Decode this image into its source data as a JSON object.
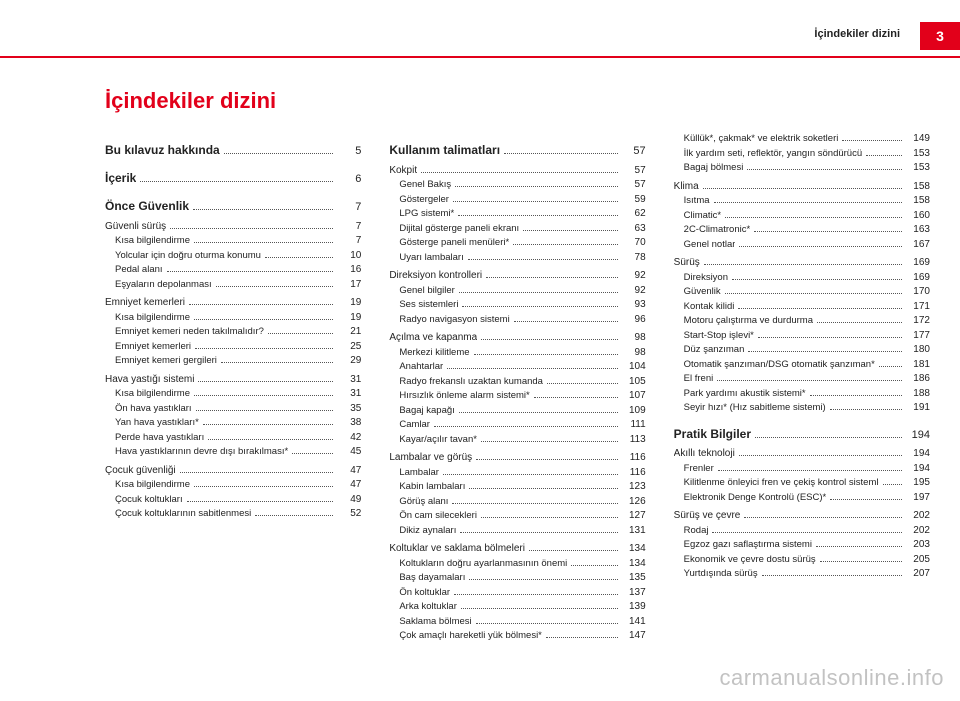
{
  "header": {
    "running_title": "İçindekiler dizini",
    "page_number": "3"
  },
  "title": "İçindekiler dizini",
  "watermark": "carmanualsonline.info",
  "colors": {
    "accent": "#e2001a",
    "text": "#222222",
    "watermark": "rgba(120,120,120,0.45)"
  },
  "columns": [
    [
      {
        "level": 1,
        "label": "Bu kılavuz hakkında",
        "page": "5"
      },
      {
        "level": 1,
        "label": "İçerik",
        "page": "6"
      },
      {
        "level": 1,
        "label": "Önce Güvenlik",
        "page": "7"
      },
      {
        "level": 2,
        "label": "Güvenli sürüş",
        "page": "7"
      },
      {
        "level": 3,
        "label": "Kısa bilgilendirme",
        "page": "7"
      },
      {
        "level": 3,
        "label": "Yolcular için doğru oturma konumu",
        "page": "10"
      },
      {
        "level": 3,
        "label": "Pedal alanı",
        "page": "16"
      },
      {
        "level": 3,
        "label": "Eşyaların depolanması",
        "page": "17"
      },
      {
        "level": 2,
        "label": "Emniyet kemerleri",
        "page": "19"
      },
      {
        "level": 3,
        "label": "Kısa bilgilendirme",
        "page": "19"
      },
      {
        "level": 3,
        "label": "Emniyet kemeri neden takılmalıdır?",
        "page": "21"
      },
      {
        "level": 3,
        "label": "Emniyet kemerleri",
        "page": "25"
      },
      {
        "level": 3,
        "label": "Emniyet kemeri gergileri",
        "page": "29"
      },
      {
        "level": 2,
        "label": "Hava yastığı sistemi",
        "page": "31"
      },
      {
        "level": 3,
        "label": "Kısa bilgilendirme",
        "page": "31"
      },
      {
        "level": 3,
        "label": "Ön hava yastıkları",
        "page": "35"
      },
      {
        "level": 3,
        "label": "Yan hava yastıkları*",
        "page": "38"
      },
      {
        "level": 3,
        "label": "Perde hava yastıkları",
        "page": "42"
      },
      {
        "level": 3,
        "label": "Hava yastıklarının devre dışı bırakılması*",
        "page": "45"
      },
      {
        "level": 2,
        "label": "Çocuk güvenliği",
        "page": "47"
      },
      {
        "level": 3,
        "label": "Kısa bilgilendirme",
        "page": "47"
      },
      {
        "level": 3,
        "label": "Çocuk koltukları",
        "page": "49"
      },
      {
        "level": 3,
        "label": "Çocuk koltuklarının sabitlenmesi",
        "page": "52"
      }
    ],
    [
      {
        "level": 1,
        "label": "Kullanım talimatları",
        "page": "57"
      },
      {
        "level": 2,
        "label": "Kokpit",
        "page": "57"
      },
      {
        "level": 3,
        "label": "Genel Bakış",
        "page": "57"
      },
      {
        "level": 3,
        "label": "Göstergeler",
        "page": "59"
      },
      {
        "level": 3,
        "label": "LPG sistemi*",
        "page": "62"
      },
      {
        "level": 3,
        "label": "Dijital gösterge paneli ekranı",
        "page": "63"
      },
      {
        "level": 3,
        "label": "Gösterge paneli menüleri*",
        "page": "70"
      },
      {
        "level": 3,
        "label": "Uyarı lambaları",
        "page": "78"
      },
      {
        "level": 2,
        "label": "Direksiyon kontrolleri",
        "page": "92"
      },
      {
        "level": 3,
        "label": "Genel bilgiler",
        "page": "92"
      },
      {
        "level": 3,
        "label": "Ses sistemleri",
        "page": "93"
      },
      {
        "level": 3,
        "label": "Radyo navigasyon sistemi",
        "page": "96"
      },
      {
        "level": 2,
        "label": "Açılma ve kapanma",
        "page": "98"
      },
      {
        "level": 3,
        "label": "Merkezi kilitleme",
        "page": "98"
      },
      {
        "level": 3,
        "label": "Anahtarlar",
        "page": "104"
      },
      {
        "level": 3,
        "label": "Radyo frekanslı uzaktan kumanda",
        "page": "105"
      },
      {
        "level": 3,
        "label": "Hırsızlık önleme alarm sistemi*",
        "page": "107"
      },
      {
        "level": 3,
        "label": "Bagaj kapağı",
        "page": "109"
      },
      {
        "level": 3,
        "label": "Camlar",
        "page": "111"
      },
      {
        "level": 3,
        "label": "Kayar/açılır tavan*",
        "page": "113"
      },
      {
        "level": 2,
        "label": "Lambalar ve görüş",
        "page": "116"
      },
      {
        "level": 3,
        "label": "Lambalar",
        "page": "116"
      },
      {
        "level": 3,
        "label": "Kabin lambaları",
        "page": "123"
      },
      {
        "level": 3,
        "label": "Görüş alanı",
        "page": "126"
      },
      {
        "level": 3,
        "label": "Ön cam silecekleri",
        "page": "127"
      },
      {
        "level": 3,
        "label": "Dikiz aynaları",
        "page": "131"
      },
      {
        "level": 2,
        "label": "Koltuklar ve saklama bölmeleri",
        "page": "134"
      },
      {
        "level": 3,
        "label": "Koltukların doğru ayarlanmasının önemi",
        "page": "134"
      },
      {
        "level": 3,
        "label": "Baş dayamaları",
        "page": "135"
      },
      {
        "level": 3,
        "label": "Ön koltuklar",
        "page": "137"
      },
      {
        "level": 3,
        "label": "Arka koltuklar",
        "page": "139"
      },
      {
        "level": 3,
        "label": "Saklama bölmesi",
        "page": "141"
      },
      {
        "level": 3,
        "label": "Çok amaçlı hareketli yük bölmesi*",
        "page": "147"
      }
    ],
    [
      {
        "level": 3,
        "label": "Küllük*, çakmak* ve elektrik soketleri",
        "page": "149"
      },
      {
        "level": 3,
        "label": "İlk yardım seti, reflektör, yangın söndürücü",
        "page": "153"
      },
      {
        "level": 3,
        "label": "Bagaj bölmesi",
        "page": "153"
      },
      {
        "level": 2,
        "label": "Klima",
        "page": "158"
      },
      {
        "level": 3,
        "label": "Isıtma",
        "page": "158"
      },
      {
        "level": 3,
        "label": "Climatic*",
        "page": "160"
      },
      {
        "level": 3,
        "label": "2C-Climatronic*",
        "page": "163"
      },
      {
        "level": 3,
        "label": "Genel notlar",
        "page": "167"
      },
      {
        "level": 2,
        "label": "Sürüş",
        "page": "169"
      },
      {
        "level": 3,
        "label": "Direksiyon",
        "page": "169"
      },
      {
        "level": 3,
        "label": "Güvenlik",
        "page": "170"
      },
      {
        "level": 3,
        "label": "Kontak kilidi",
        "page": "171"
      },
      {
        "level": 3,
        "label": "Motoru çalıştırma ve durdurma",
        "page": "172"
      },
      {
        "level": 3,
        "label": "Start-Stop işlevi*",
        "page": "177"
      },
      {
        "level": 3,
        "label": "Düz şanzıman",
        "page": "180"
      },
      {
        "level": 3,
        "label": "Otomatik şanzıman/DSG otomatik şanzıman*",
        "page": "181"
      },
      {
        "level": 3,
        "label": "El freni",
        "page": "186"
      },
      {
        "level": 3,
        "label": "Park yardımı akustik sistemi*",
        "page": "188"
      },
      {
        "level": 3,
        "label": "Seyir hızı* (Hız sabitleme sistemi)",
        "page": "191"
      },
      {
        "level": 1,
        "label": "Pratik Bilgiler",
        "page": "194"
      },
      {
        "level": 2,
        "label": "Akıllı teknoloji",
        "page": "194"
      },
      {
        "level": 3,
        "label": "Frenler",
        "page": "194"
      },
      {
        "level": 3,
        "label": "Kilitlenme önleyici fren ve çekiş kontrol sistemleri M-ABS (ABS ve ASR)",
        "page": "195"
      },
      {
        "level": 3,
        "label": "Elektronik Denge Kontrolü (ESC)*",
        "page": "197"
      },
      {
        "level": 2,
        "label": "Sürüş ve çevre",
        "page": "202"
      },
      {
        "level": 3,
        "label": "Rodaj",
        "page": "202"
      },
      {
        "level": 3,
        "label": "Egzoz gazı saflaştırma sistemi",
        "page": "203"
      },
      {
        "level": 3,
        "label": "Ekonomik ve çevre dostu sürüş",
        "page": "205"
      },
      {
        "level": 3,
        "label": "Yurtdışında sürüş",
        "page": "207"
      }
    ]
  ]
}
